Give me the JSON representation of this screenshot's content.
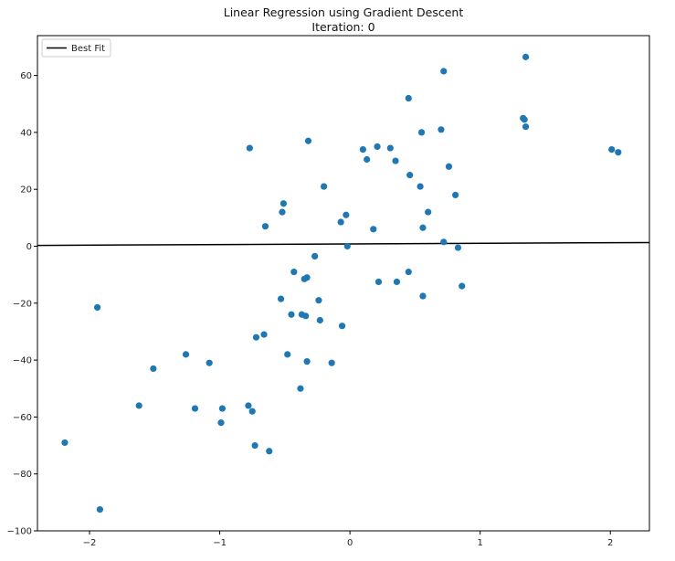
{
  "chart_data": {
    "type": "scatter",
    "title": "Linear Regression using Gradient Descent",
    "subtitle": "Iteration: 0",
    "xlabel": "",
    "ylabel": "",
    "xlim": [
      -2.4,
      2.3
    ],
    "ylim": [
      -100,
      74
    ],
    "x_ticks": [
      -2,
      -1,
      0,
      1,
      2
    ],
    "x_tick_labels": [
      "−2",
      "−1",
      "0",
      "1",
      "2"
    ],
    "y_ticks": [
      -100,
      -80,
      -60,
      -40,
      -20,
      0,
      20,
      40,
      60
    ],
    "y_tick_labels": [
      "−100",
      "−80",
      "−60",
      "−40",
      "−20",
      "0",
      "20",
      "40",
      "60"
    ],
    "grid": false,
    "legend": {
      "position": "top-left",
      "entries": [
        "Best Fit"
      ]
    },
    "colors": {
      "points": "#1f77b4",
      "line": "#000000"
    },
    "best_fit_line": {
      "name": "Best Fit",
      "x": [
        -2.4,
        2.3
      ],
      "y": [
        0.3,
        1.3
      ]
    },
    "points": {
      "x": [
        1.35,
        0.72,
        0.45,
        1.33,
        1.34,
        1.35,
        0.7,
        0.55,
        2.01,
        2.06,
        -0.77,
        -0.32,
        0.1,
        0.21,
        0.31,
        0.13,
        0.35,
        0.76,
        0.46,
        -0.2,
        0.54,
        0.81,
        -0.51,
        -0.52,
        -0.65,
        0.6,
        -0.03,
        -0.07,
        0.18,
        0.56,
        0.72,
        -0.02,
        0.83,
        -0.27,
        -0.43,
        0.45,
        -0.33,
        -0.35,
        0.22,
        0.36,
        0.86,
        -0.53,
        0.56,
        -0.24,
        -1.94,
        -0.45,
        -0.37,
        -0.34,
        -0.23,
        -0.06,
        -0.66,
        -0.72,
        -0.48,
        -1.26,
        -0.33,
        -0.14,
        -1.08,
        -1.51,
        -0.38,
        -1.62,
        -1.19,
        -0.98,
        -0.78,
        -0.75,
        -0.99,
        -0.73,
        -0.62,
        -2.19,
        -1.92
      ],
      "y": [
        66.5,
        61.5,
        52,
        45,
        44.5,
        42,
        41,
        40,
        34,
        33,
        34.5,
        37,
        34,
        35,
        34.5,
        30.5,
        30,
        28,
        25,
        21,
        21,
        18,
        15,
        12,
        7,
        12,
        11,
        8.5,
        6,
        6.5,
        1.5,
        0,
        -0.5,
        -3.5,
        -9,
        -9,
        -11,
        -11.5,
        -12.5,
        -12.5,
        -14,
        -18.5,
        -17.5,
        -19,
        -21.5,
        -24,
        -24,
        -24.5,
        -26,
        -28,
        -31,
        -32,
        -38,
        -38,
        -40.5,
        -41,
        -41,
        -43,
        -50,
        -56,
        -57,
        -57,
        -56,
        -58,
        -62,
        -70,
        -72,
        -69,
        -92.5
      ]
    }
  }
}
